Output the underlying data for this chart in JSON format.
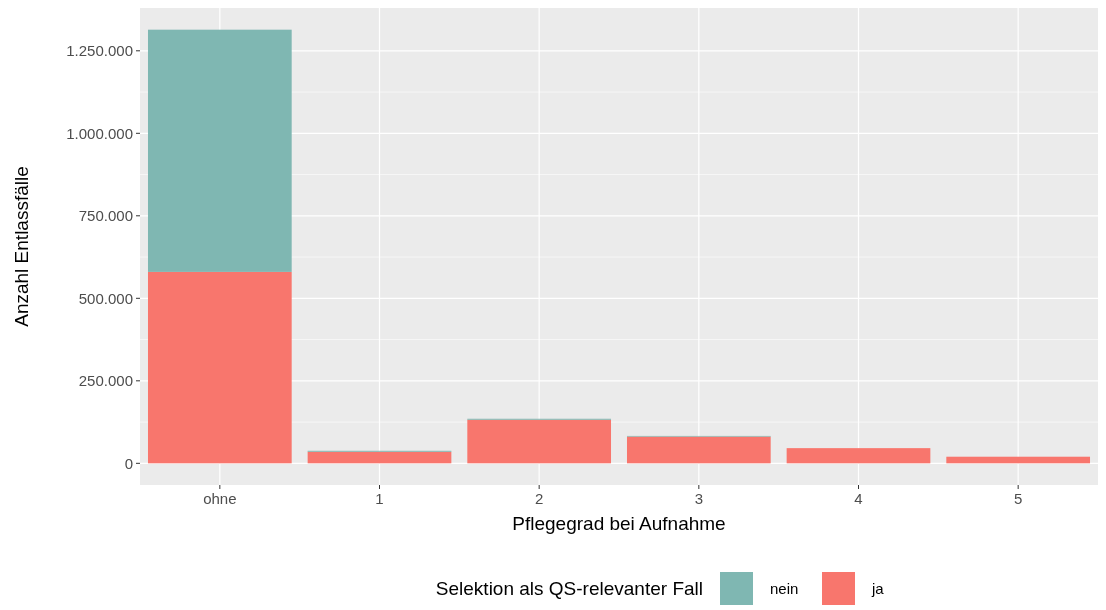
{
  "chart_data": {
    "type": "bar",
    "stacked": true,
    "xlabel": "Pflegegrad bei Aufnahme",
    "ylabel": "Anzahl Entlassfälle",
    "legend_title": "Selektion als QS-relevanter Fall",
    "categories": [
      "ohne",
      "1",
      "2",
      "3",
      "4",
      "5"
    ],
    "series": [
      {
        "name": "ja",
        "color": "#f8766d",
        "values": [
          580000,
          35000,
          132000,
          81000,
          46000,
          20000
        ]
      },
      {
        "name": "nein",
        "color": "#7fb7b2",
        "values": [
          734000,
          3000,
          3000,
          2000,
          null,
          null
        ]
      }
    ],
    "ylim": [
      -65700,
      1379700
    ],
    "yticks": [
      {
        "value": 0,
        "label": "0"
      },
      {
        "value": 250000,
        "label": "250.000"
      },
      {
        "value": 500000,
        "label": "500.000"
      },
      {
        "value": 750000,
        "label": "750.000"
      },
      {
        "value": 1000000,
        "label": "1.000.000"
      },
      {
        "value": 1250000,
        "label": "1.250.000"
      }
    ],
    "grid": true,
    "legend": "bottom"
  }
}
